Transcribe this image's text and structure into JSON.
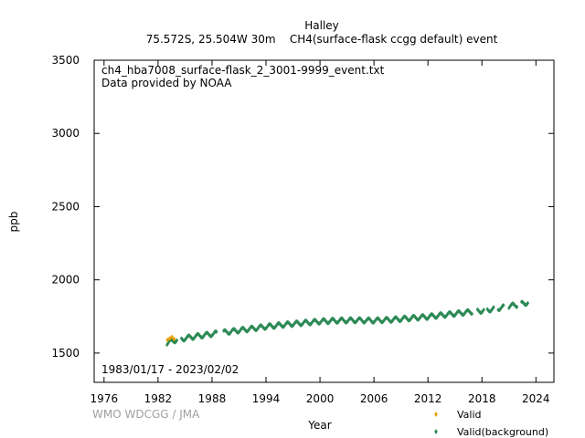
{
  "chart_data": {
    "type": "scatter",
    "title": "Halley",
    "subtitle": "75.572S, 25.504W 30m    CH4(surface-flask ccgg default) event",
    "xlabel": "Year",
    "ylabel": "ppb",
    "xlim": [
      1974.9,
      2026.0
    ],
    "ylim": [
      1300,
      3500
    ],
    "xticks": [
      "1976",
      "1982",
      "1988",
      "1994",
      "2000",
      "2006",
      "2012",
      "2018",
      "2024"
    ],
    "yticks": [
      "1500",
      "2000",
      "2500",
      "3000",
      "3500"
    ],
    "grid": false,
    "legend_position": "bottom-right",
    "annotations": {
      "filename": "ch4_hba7008_surface-flask_2_3001-9999_event.txt",
      "provider": "Data provided by NOAA",
      "date_range": "1983/01/17 - 2023/02/02",
      "watermark": "WMO WDCGG / JMA"
    },
    "series": [
      {
        "name": "Valid",
        "color": "#e8a000",
        "marker": "diamond",
        "x": [
          1983.05,
          1983.3,
          1983.55,
          1983.8
        ],
        "y": [
          1590,
          1600,
          1610,
          1596
        ]
      },
      {
        "name": "Valid(background)",
        "color": "#2e8b57",
        "marker": "diamond",
        "trend": {
          "years": [
            1983.0,
            1984,
            1986,
            1988,
            1990,
            1992,
            1994,
            1996,
            1998,
            2000,
            2002,
            2004,
            2006,
            2008,
            2010,
            2012,
            2014,
            2016,
            2018,
            2020,
            2022,
            2023.1
          ],
          "ppb": [
            1568,
            1590,
            1612,
            1630,
            1647,
            1663,
            1680,
            1694,
            1705,
            1716,
            1722,
            1724,
            1722,
            1728,
            1738,
            1748,
            1762,
            1776,
            1790,
            1808,
            1830,
            1846
          ]
        },
        "seasonal_amplitude": 14,
        "coverage": [
          [
            1983.0,
            1984.1
          ],
          [
            1984.6,
            1988.5
          ],
          [
            1989.3,
            2016.9
          ],
          [
            2017.5,
            2018.2
          ],
          [
            2018.6,
            2019.3
          ],
          [
            2019.8,
            2020.4
          ],
          [
            2021.0,
            2021.9
          ],
          [
            2022.4,
            2023.1
          ]
        ]
      }
    ]
  }
}
